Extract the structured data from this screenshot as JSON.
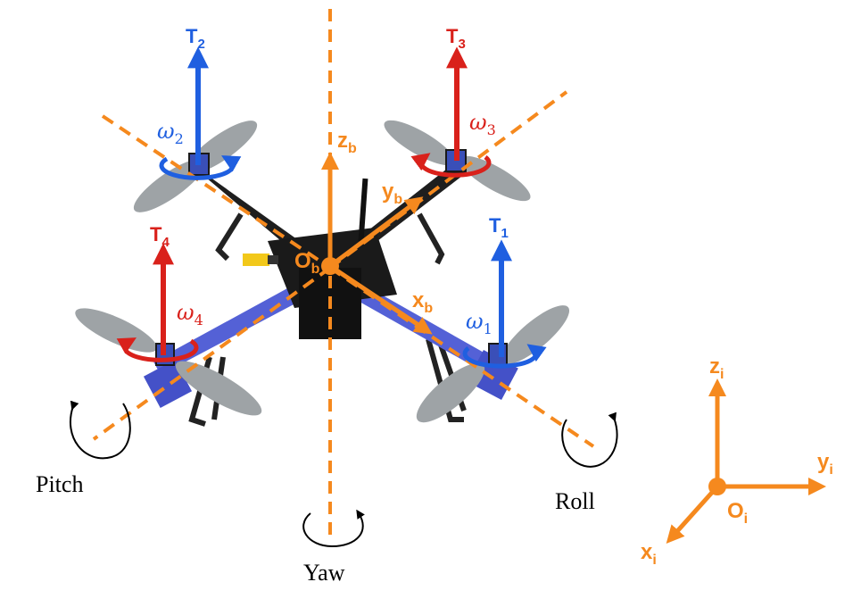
{
  "colors": {
    "axis_orange": "#F5891E",
    "thrust_blue": "#1F5FE0",
    "thrust_red": "#D9211B",
    "frame_black": "#1E1E1E",
    "arm_blue": "#5461D6",
    "prop_grey": "#9EA3A6"
  },
  "thrusts": [
    {
      "base": "T",
      "sub": "1",
      "color": "thrust_blue"
    },
    {
      "base": "T",
      "sub": "2",
      "color": "thrust_blue"
    },
    {
      "base": "T",
      "sub": "3",
      "color": "thrust_red"
    },
    {
      "base": "T",
      "sub": "4",
      "color": "thrust_red"
    }
  ],
  "omegas": [
    {
      "base": "ω",
      "sub": "1",
      "color": "thrust_blue"
    },
    {
      "base": "ω",
      "sub": "2",
      "color": "thrust_blue"
    },
    {
      "base": "ω",
      "sub": "3",
      "color": "thrust_red"
    },
    {
      "base": "ω",
      "sub": "4",
      "color": "thrust_red"
    }
  ],
  "body_frame": {
    "origin": {
      "base": "O",
      "sub": "b"
    },
    "x": {
      "base": "x",
      "sub": "b"
    },
    "y": {
      "base": "y",
      "sub": "b"
    },
    "z": {
      "base": "z",
      "sub": "b"
    }
  },
  "inertial_frame": {
    "origin": {
      "base": "O",
      "sub": "i"
    },
    "x": {
      "base": "x",
      "sub": "i"
    },
    "y": {
      "base": "y",
      "sub": "i"
    },
    "z": {
      "base": "z",
      "sub": "i"
    }
  },
  "rotations": {
    "pitch": "Pitch",
    "roll": "Roll",
    "yaw": "Yaw"
  }
}
